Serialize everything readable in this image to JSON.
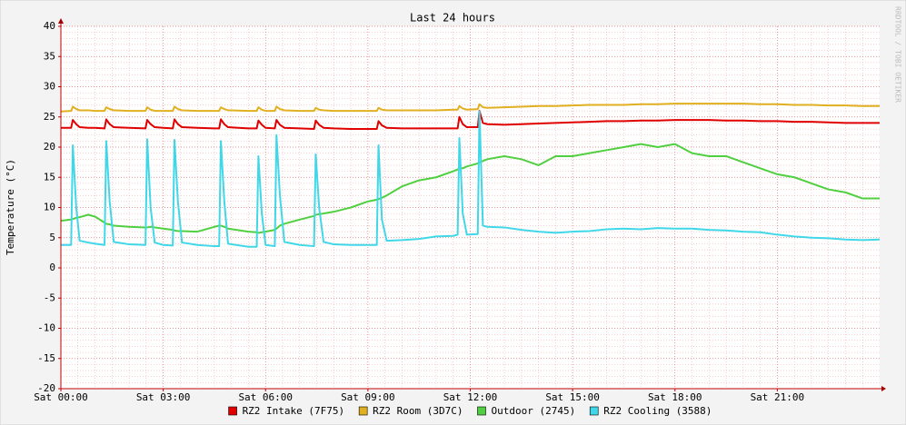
{
  "chart_data": {
    "type": "line",
    "title": "Last 24 hours",
    "y_label": "Temperature (°C)",
    "side_text": "RRDTOOL / TOBI OETIKER",
    "grid": true,
    "legend": "bottom",
    "xlim": [
      0,
      24
    ],
    "xticks": [
      {
        "value": 0,
        "label": "Sat 00:00"
      },
      {
        "value": 3,
        "label": "Sat 03:00"
      },
      {
        "value": 6,
        "label": "Sat 06:00"
      },
      {
        "value": 9,
        "label": "Sat 09:00"
      },
      {
        "value": 12,
        "label": "Sat 12:00"
      },
      {
        "value": 15,
        "label": "Sat 15:00"
      },
      {
        "value": 18,
        "label": "Sat 18:00"
      },
      {
        "value": 21,
        "label": "Sat 21:00"
      }
    ],
    "ylim": [
      -20,
      40
    ],
    "yticks": [
      -20,
      -15,
      -10,
      -5,
      0,
      5,
      10,
      15,
      20,
      25,
      30,
      35,
      40
    ],
    "x": [
      0,
      0.3,
      0.35,
      0.45,
      0.55,
      0.8,
      1.0,
      1.28,
      1.33,
      1.43,
      1.55,
      2.0,
      2.48,
      2.53,
      2.63,
      2.75,
      3.0,
      3.28,
      3.33,
      3.43,
      3.55,
      4.0,
      4.5,
      4.64,
      4.69,
      4.79,
      4.9,
      5.5,
      5.74,
      5.79,
      5.89,
      6.0,
      6.27,
      6.32,
      6.42,
      6.55,
      7.0,
      7.42,
      7.47,
      7.57,
      7.7,
      8.0,
      8.5,
      9.0,
      9.26,
      9.31,
      9.41,
      9.55,
      10.0,
      10.5,
      11.0,
      11.5,
      11.63,
      11.68,
      11.78,
      11.9,
      12.22,
      12.27,
      12.37,
      12.5,
      13.0,
      13.5,
      14.0,
      14.5,
      15.0,
      15.5,
      16.0,
      16.5,
      17.0,
      17.5,
      18.0,
      18.5,
      19.0,
      19.5,
      20.0,
      20.5,
      21.0,
      21.5,
      22.0,
      22.5,
      23.0,
      23.5,
      24.0
    ],
    "series": [
      {
        "name": "RZ2 Intake (7F75)",
        "color": "#e00000",
        "values": [
          23.2,
          23.2,
          24.5,
          23.8,
          23.3,
          23.2,
          23.2,
          23.1,
          24.6,
          23.8,
          23.3,
          23.2,
          23.1,
          24.5,
          23.8,
          23.3,
          23.2,
          23.1,
          24.6,
          23.8,
          23.3,
          23.2,
          23.1,
          23.1,
          24.6,
          23.8,
          23.3,
          23.1,
          23.1,
          24.4,
          23.7,
          23.2,
          23.1,
          24.5,
          23.7,
          23.2,
          23.1,
          23.0,
          24.4,
          23.7,
          23.2,
          23.1,
          23.0,
          23.0,
          23.0,
          24.3,
          23.6,
          23.2,
          23.1,
          23.1,
          23.1,
          23.1,
          23.1,
          25.0,
          23.8,
          23.3,
          23.3,
          26.0,
          24.0,
          23.8,
          23.7,
          23.8,
          23.9,
          24.0,
          24.1,
          24.2,
          24.3,
          24.3,
          24.4,
          24.4,
          24.5,
          24.5,
          24.5,
          24.4,
          24.4,
          24.3,
          24.3,
          24.2,
          24.2,
          24.1,
          24.0,
          24.0,
          24.0
        ]
      },
      {
        "name": "RZ2 Room (3D7C)",
        "color": "#e0b020",
        "values": [
          25.9,
          26.0,
          26.7,
          26.3,
          26.1,
          26.1,
          26.0,
          26.0,
          26.6,
          26.3,
          26.1,
          26.0,
          26.0,
          26.6,
          26.2,
          26.0,
          26.0,
          26.0,
          26.7,
          26.3,
          26.1,
          26.0,
          26.0,
          26.0,
          26.6,
          26.3,
          26.1,
          26.0,
          26.0,
          26.6,
          26.2,
          26.0,
          26.0,
          26.7,
          26.3,
          26.1,
          26.0,
          26.0,
          26.5,
          26.2,
          26.1,
          26.0,
          26.0,
          26.0,
          26.0,
          26.5,
          26.2,
          26.1,
          26.1,
          26.1,
          26.1,
          26.2,
          26.2,
          26.8,
          26.4,
          26.2,
          26.3,
          27.1,
          26.6,
          26.5,
          26.6,
          26.7,
          26.8,
          26.8,
          26.9,
          27.0,
          27.0,
          27.0,
          27.1,
          27.1,
          27.2,
          27.2,
          27.2,
          27.2,
          27.2,
          27.1,
          27.1,
          27.0,
          27.0,
          26.9,
          26.9,
          26.8,
          26.8
        ]
      },
      {
        "name": "Outdoor (2745)",
        "color": "#50d040",
        "values": [
          7.8,
          8.0,
          8.1,
          8.3,
          8.4,
          8.8,
          8.5,
          7.5,
          7.3,
          7.2,
          7.0,
          6.8,
          6.7,
          6.7,
          6.8,
          6.7,
          6.5,
          6.3,
          6.2,
          6.1,
          6.1,
          6.0,
          6.8,
          7.0,
          7.0,
          6.8,
          6.5,
          6.0,
          5.9,
          5.8,
          5.9,
          6.0,
          6.3,
          6.5,
          7.0,
          7.3,
          8.0,
          8.6,
          8.8,
          8.9,
          9.0,
          9.3,
          10.0,
          11.0,
          11.3,
          11.4,
          11.6,
          12.0,
          13.5,
          14.5,
          15.0,
          16.0,
          16.3,
          16.5,
          16.5,
          16.8,
          17.3,
          17.5,
          17.7,
          18.0,
          18.5,
          18.0,
          17.0,
          18.5,
          18.5,
          19.0,
          19.5,
          20.0,
          20.5,
          20.0,
          20.5,
          19.0,
          18.5,
          18.5,
          17.5,
          16.5,
          15.5,
          15.0,
          14.0,
          13.0,
          12.5,
          11.5,
          11.5
        ]
      },
      {
        "name": "RZ2 Cooling (3588)",
        "color": "#40d8e8",
        "values": [
          3.8,
          3.8,
          20.3,
          10,
          4.5,
          4.2,
          4.0,
          3.8,
          21,
          11,
          4.3,
          3.9,
          3.8,
          21.3,
          10,
          4.2,
          3.8,
          3.7,
          21.2,
          11,
          4.2,
          3.8,
          3.6,
          3.6,
          21,
          11,
          4.0,
          3.5,
          3.5,
          18.5,
          9,
          3.8,
          3.6,
          22,
          12,
          4.3,
          3.8,
          3.6,
          18.8,
          10,
          4.3,
          3.9,
          3.8,
          3.8,
          3.8,
          20.3,
          8,
          4.5,
          4.6,
          4.8,
          5.2,
          5.3,
          5.5,
          21.5,
          9,
          5.5,
          5.6,
          25.9,
          7,
          6.8,
          6.7,
          6.3,
          6.0,
          5.8,
          6.0,
          6.1,
          6.4,
          6.5,
          6.4,
          6.6,
          6.5,
          6.5,
          6.3,
          6.2,
          6.0,
          5.9,
          5.5,
          5.2,
          5.0,
          4.9,
          4.7,
          4.6,
          4.7
        ]
      }
    ]
  }
}
